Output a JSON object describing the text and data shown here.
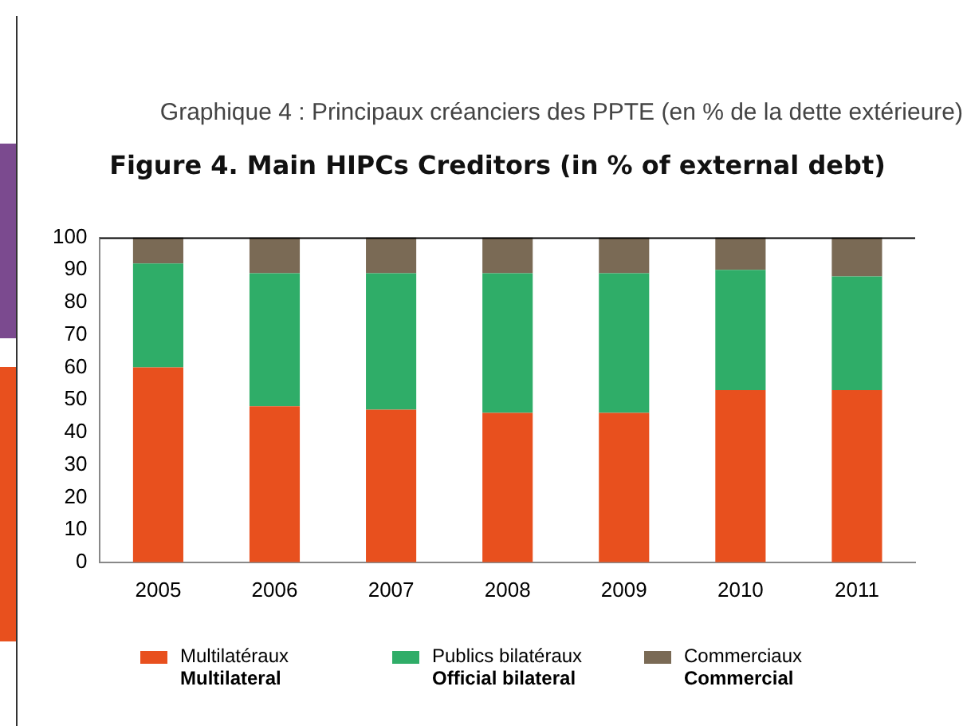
{
  "chart_data": {
    "type": "bar",
    "stacked": true,
    "title": "Graphique 4 : Principaux créanciers des PPTE (en % de la dette extérieure)",
    "subtitle": "Figure 4. Main HIPCs Creditors (in % of external debt)",
    "categories": [
      "2005",
      "2006",
      "2007",
      "2008",
      "2009",
      "2010",
      "2011"
    ],
    "series": [
      {
        "name": "Multilatéraux\nMultilateral",
        "color": "#e8501e",
        "values": [
          60,
          48,
          47,
          46,
          46,
          53,
          53
        ]
      },
      {
        "name": "Publics bilatéraux\nOfficial bilateral",
        "color": "#2fad68",
        "values": [
          32,
          41,
          42,
          43,
          43,
          37,
          35
        ]
      },
      {
        "name": "Commerciaux\nCommercial",
        "color": "#7a6a55",
        "values": [
          8,
          11,
          11,
          11,
          11,
          10,
          12
        ]
      }
    ],
    "ylim": [
      0,
      100
    ],
    "yticks": [
      0,
      10,
      20,
      30,
      40,
      50,
      60,
      70,
      80,
      90,
      100
    ],
    "grid": false,
    "legend": "bottom"
  }
}
